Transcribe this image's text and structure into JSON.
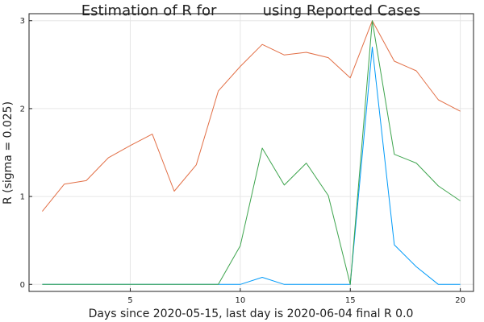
{
  "chart_data": {
    "type": "line",
    "title": "Estimation of R for          using Reported Cases",
    "xlabel": "Days since 2020-05-15, last day is 2020-06-04 final R 0.0",
    "ylabel": "R (sigma = 0.025)",
    "xlim": [
      0.4,
      20.6
    ],
    "ylim": [
      -0.08,
      3.08
    ],
    "xticks": [
      5,
      10,
      15,
      20
    ],
    "yticks": [
      0,
      1,
      2,
      3
    ],
    "grid": true,
    "legend": "none",
    "x": [
      1,
      2,
      3,
      4,
      5,
      6,
      7,
      8,
      9,
      10,
      11,
      12,
      13,
      14,
      15,
      16,
      17,
      18,
      19,
      20
    ],
    "series": [
      {
        "color": "#009AF9",
        "values": [
          0,
          0,
          0,
          0,
          0,
          0,
          0,
          0,
          0,
          0,
          0.08,
          0,
          0,
          0,
          0,
          2.7,
          0.45,
          0.2,
          0,
          0
        ]
      },
      {
        "color": "#E26F46",
        "values": [
          0.83,
          1.14,
          1.18,
          1.44,
          1.58,
          1.71,
          1.06,
          1.36,
          2.2,
          2.48,
          2.73,
          2.61,
          2.64,
          2.58,
          2.35,
          3.0,
          2.54,
          2.43,
          2.1,
          1.97
        ]
      },
      {
        "color": "#3DA44D",
        "values": [
          0,
          0,
          0,
          0,
          0,
          0,
          0,
          0,
          0,
          0.44,
          1.55,
          1.13,
          1.38,
          1.01,
          0,
          3.0,
          1.48,
          1.38,
          1.12,
          0.95
        ]
      }
    ]
  }
}
